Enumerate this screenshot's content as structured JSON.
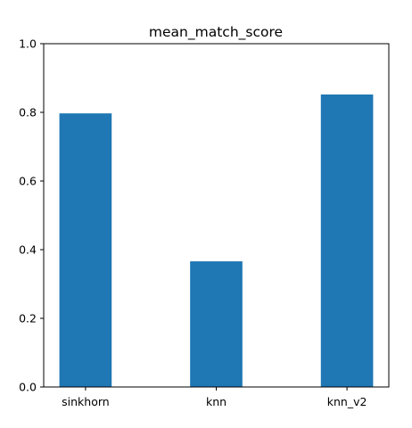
{
  "chart_data": {
    "type": "bar",
    "title": "mean_match_score",
    "xlabel": "",
    "ylabel": "",
    "categories": [
      "sinkhorn",
      "knn",
      "knn_v2"
    ],
    "values": [
      0.797,
      0.366,
      0.852
    ],
    "ylim": [
      0,
      1.0
    ],
    "yticks": [
      "0.0",
      "0.2",
      "0.4",
      "0.6",
      "0.8",
      "1.0"
    ],
    "grid": false,
    "legend": "none",
    "bar_color": "#1f77b4"
  }
}
